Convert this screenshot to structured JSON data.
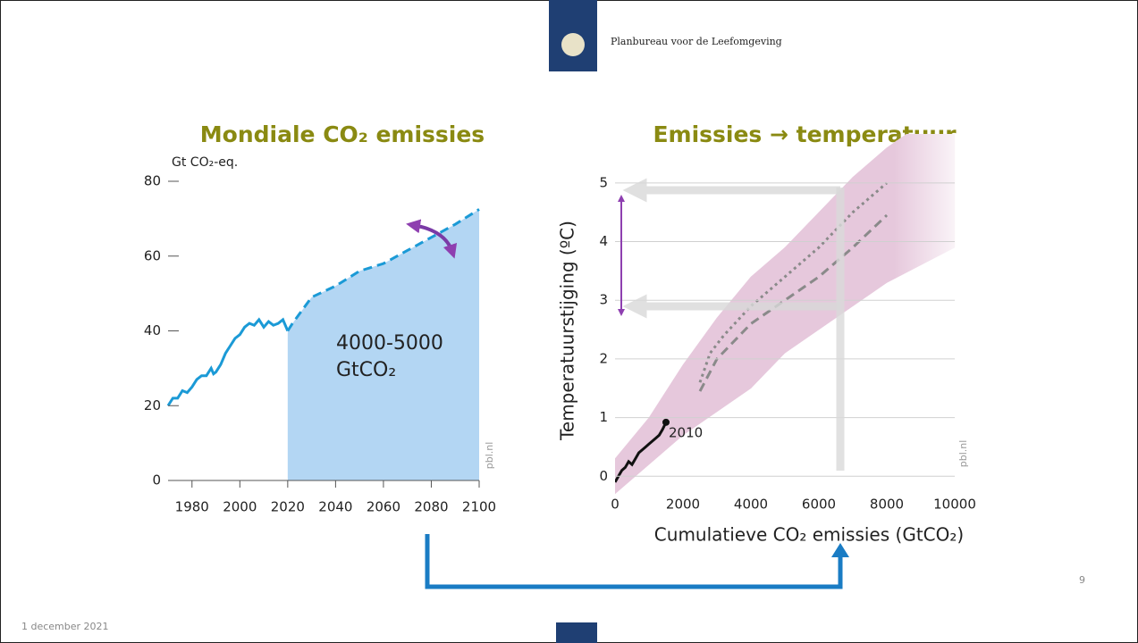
{
  "header": {
    "organisation": "Planbureau voor de Leefomgeving"
  },
  "footer": {
    "date": "1 december 2021",
    "page": "9"
  },
  "chart_data": [
    {
      "type": "area",
      "title": "Mondiale CO₂ emissies",
      "ylabel": "Gt CO₂-eq.",
      "xlim": [
        1970,
        2100
      ],
      "xticks": [
        1980,
        2000,
        2020,
        2040,
        2060,
        2080,
        2100
      ],
      "ylim": [
        0,
        80
      ],
      "yticks": [
        0,
        20,
        40,
        60,
        80
      ],
      "series": [
        {
          "color": "#1b9ad6",
          "style": "solid",
          "x": [
            1970,
            1972,
            1974,
            1976,
            1978,
            1980,
            1982,
            1984,
            1986,
            1988,
            1989,
            1990,
            1992,
            1994,
            1996,
            1998,
            2000,
            2002,
            2004,
            2006,
            2008,
            2010,
            2012,
            2014,
            2016,
            2018,
            2020
          ],
          "values": [
            20,
            22,
            22,
            24,
            23.5,
            25,
            27,
            28,
            28,
            30,
            28.5,
            29,
            31,
            34,
            36,
            38,
            39,
            41,
            42,
            41.5,
            43,
            41,
            42.5,
            41.5,
            42,
            43,
            40
          ]
        },
        {
          "color": "#1b9ad6",
          "style": "dashed",
          "fill": "#b3d6f3",
          "x": [
            2020,
            2022,
            2030,
            2040,
            2050,
            2060,
            2070,
            2080,
            2090,
            2100
          ],
          "values": [
            40,
            42,
            49,
            52,
            56,
            58,
            61.5,
            65,
            68.5,
            72.5
          ]
        }
      ],
      "annotations": [
        "4000-5000",
        "GtCO₂"
      ],
      "source": "pbl.nl"
    },
    {
      "type": "line",
      "title": "Emissies → temperatuur",
      "xlabel": "Cumulatieve CO₂ emissies (GtCO₂)",
      "ylabel": "Temperatuurstijging (ºC)",
      "xlim": [
        0,
        10000
      ],
      "xticks": [
        0,
        2000,
        4000,
        6000,
        8000,
        10000
      ],
      "ylim": [
        -0.3,
        5.5
      ],
      "yticks": [
        0,
        1,
        2,
        3,
        4,
        5
      ],
      "grid": true,
      "band": {
        "color": "#e6c8dc",
        "x": [
          0,
          1000,
          2000,
          3000,
          4000,
          5000,
          6000,
          7000,
          8000,
          9000,
          10000
        ],
        "lower": [
          -0.3,
          0.2,
          0.7,
          1.1,
          1.5,
          2.1,
          2.5,
          2.9,
          3.3,
          3.6,
          3.9
        ],
        "upper": [
          0.3,
          1.0,
          1.9,
          2.7,
          3.4,
          3.9,
          4.5,
          5.1,
          5.6,
          6.0,
          6.3
        ]
      },
      "series": [
        {
          "color": "#111111",
          "style": "solid",
          "marker": true,
          "x": [
            0,
            100,
            200,
            300,
            400,
            500,
            600,
            700,
            800,
            900,
            1000,
            1100,
            1200,
            1300,
            1400,
            1500
          ],
          "values": [
            -0.1,
            0.0,
            0.1,
            0.15,
            0.25,
            0.2,
            0.3,
            0.4,
            0.45,
            0.5,
            0.55,
            0.6,
            0.65,
            0.7,
            0.8,
            0.92
          ]
        },
        {
          "color": "#8a8a8a",
          "style": "dotted",
          "x": [
            2500,
            2800,
            3200,
            4000,
            5000,
            6000,
            7000,
            8000
          ],
          "values": [
            1.6,
            2.1,
            2.4,
            2.9,
            3.4,
            3.9,
            4.5,
            5.0
          ]
        },
        {
          "color": "#8a8a8a",
          "style": "dashed",
          "x": [
            2500,
            3000,
            4000,
            5000,
            6000,
            7000,
            8000
          ],
          "values": [
            1.45,
            2.0,
            2.6,
            3.0,
            3.4,
            3.9,
            4.45
          ]
        }
      ],
      "annotations": [
        "2010"
      ],
      "source": "pbl.nl"
    }
  ]
}
